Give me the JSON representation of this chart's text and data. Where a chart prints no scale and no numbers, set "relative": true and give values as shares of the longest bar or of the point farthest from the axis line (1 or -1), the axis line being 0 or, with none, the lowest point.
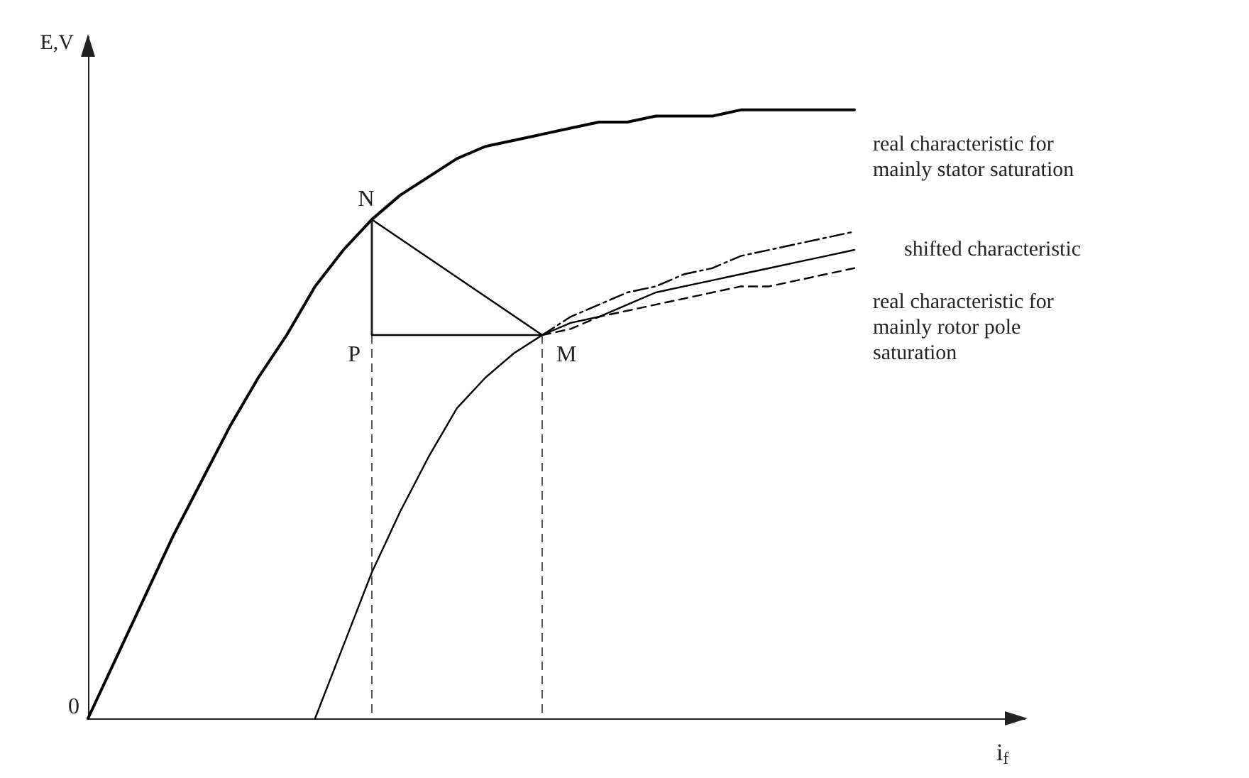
{
  "chart_data": {
    "type": "line",
    "relative": true,
    "xlabel": "i$_{f}$",
    "ylabel": "E,V",
    "categories": [
      null,
      null,
      null,
      null,
      null,
      null,
      null,
      null,
      null,
      null,
      null,
      null,
      null,
      null,
      null,
      null,
      null,
      null,
      null,
      null,
      null,
      null,
      null,
      null,
      null,
      null,
      null,
      null,
      null,
      null,
      null,
      null,
      null,
      null
    ],
    "series": [
      {
        "color": "#000000",
        "line_style": "solid",
        "values": [
          0,
          0.1,
          0.2,
          0.3,
          0.39,
          0.48,
          0.56,
          0.63,
          0.71,
          0.77,
          0.82,
          0.86,
          0.89,
          0.92,
          0.94,
          0.95,
          0.96,
          0.97,
          0.98,
          0.98,
          0.99,
          0.99,
          0.99,
          1,
          1,
          1,
          1,
          1,
          null,
          null,
          null,
          null,
          null,
          null
        ]
      },
      {
        "name": "shifted characteristic",
        "color": "#000000",
        "line_style": "solid",
        "values": [
          null,
          null,
          null,
          null,
          null,
          null,
          null,
          null,
          0,
          0.12,
          0.24,
          0.34,
          0.43,
          0.51,
          0.56,
          0.6,
          0.63,
          0.65,
          0.66,
          0.68,
          0.7,
          0.71,
          0.72,
          0.73,
          0.74,
          0.75,
          0.76,
          0.77,
          null,
          null,
          null,
          null,
          null,
          null
        ]
      },
      {
        "name": "real characteristic for mainly stator saturation",
        "color": "#000000",
        "line_style": "dotted",
        "values": [
          null,
          null,
          null,
          null,
          null,
          null,
          null,
          null,
          null,
          null,
          null,
          null,
          null,
          null,
          null,
          null,
          0.63,
          0.66,
          0.68,
          0.7,
          0.71,
          0.73,
          0.74,
          0.76,
          0.77,
          0.78,
          0.79,
          0.8,
          null,
          null,
          null,
          null,
          null,
          null
        ]
      },
      {
        "name": "real characteristic for mainly rotor pole saturation",
        "color": "#000000",
        "line_style": "dashed",
        "values": [
          null,
          null,
          null,
          null,
          null,
          null,
          null,
          null,
          null,
          null,
          null,
          null,
          null,
          null,
          null,
          null,
          0.63,
          0.64,
          0.66,
          0.67,
          0.68,
          0.69,
          0.7,
          0.71,
          0.71,
          0.72,
          0.73,
          0.74,
          null,
          null,
          null,
          null,
          null,
          null
        ]
      },
      {
        "color": "#000000",
        "line_style": "solid",
        "values": [
          null,
          null,
          null,
          null,
          null,
          null,
          null,
          null,
          null,
          null,
          0.82,
          null,
          null,
          null,
          null,
          null,
          0.63,
          null,
          null,
          null,
          null,
          null,
          null,
          null,
          null,
          null,
          null,
          null,
          null,
          null,
          null,
          null,
          null,
          null
        ]
      },
      {
        "color": "#000000",
        "line_style": "solid",
        "values": [
          null,
          null,
          null,
          null,
          null,
          null,
          null,
          null,
          null,
          null,
          0.63,
          null,
          null,
          null,
          null,
          null,
          0.63,
          null,
          null,
          null,
          null,
          null,
          null,
          null,
          null,
          null,
          null,
          null,
          null,
          null,
          null,
          null,
          null,
          null
        ]
      }
    ],
    "annotations": [
      "N",
      "P",
      "M",
      "0"
    ]
  }
}
